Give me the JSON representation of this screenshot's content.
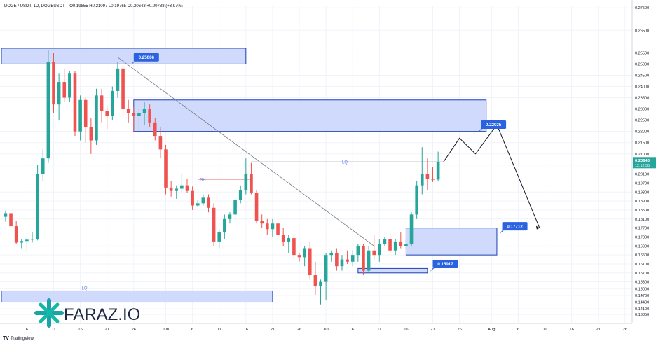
{
  "header": {
    "symbol": "DOGE / USDT, 1D, DOGEUSDT",
    "ohlc": "O0.19855  H0.21097  L0.19765  C0.20643  +0.00788 (+3.97%)"
  },
  "chart_data": {
    "type": "candlestick",
    "instrument": "DOGE / USDT",
    "timeframe": "1D",
    "ylim": [
      0.1345,
      0.276
    ],
    "y_ticks": [
      "0.27500",
      "0.26500",
      "0.25500",
      "0.25000",
      "0.24500",
      "0.24000",
      "0.23500",
      "0.23000",
      "0.22500",
      "0.22000",
      "0.21500",
      "0.21000",
      "0.20500",
      "0.20100",
      "0.19700",
      "0.19300",
      "0.18900",
      "0.18500",
      "0.18100",
      "0.17700",
      "0.17300",
      "0.16900",
      "0.16500",
      "0.16100",
      "0.15700",
      "0.15300",
      "0.15000",
      "0.14700",
      "0.14400",
      "0.14100",
      "0.13850"
    ],
    "x_ticks": [
      {
        "label": "6",
        "day": -25
      },
      {
        "label": "11",
        "day": -20
      },
      {
        "label": "16",
        "day": -15
      },
      {
        "label": "21",
        "day": -10
      },
      {
        "label": "26",
        "day": -5
      },
      {
        "label": "Jun",
        "day": 1
      },
      {
        "label": "6",
        "day": 6
      },
      {
        "label": "11",
        "day": 11
      },
      {
        "label": "16",
        "day": 16
      },
      {
        "label": "21",
        "day": 21
      },
      {
        "label": "26",
        "day": 26
      },
      {
        "label": "Jul",
        "day": 31
      },
      {
        "label": "6",
        "day": 36
      },
      {
        "label": "11",
        "day": 41
      },
      {
        "label": "16",
        "day": 46
      },
      {
        "label": "21",
        "day": 51
      },
      {
        "label": "26",
        "day": 56
      },
      {
        "label": "Aug",
        "day": 62
      },
      {
        "label": "6",
        "day": 67
      },
      {
        "label": "11",
        "day": 72
      },
      {
        "label": "16",
        "day": 77
      },
      {
        "label": "21",
        "day": 82
      },
      {
        "label": "26",
        "day": 87
      }
    ],
    "candles": [
      [
        -29,
        0.182,
        0.1845,
        0.1798,
        0.1836
      ],
      [
        -28,
        0.1836,
        0.184,
        0.177,
        0.1778
      ],
      [
        -27,
        0.1778,
        0.18,
        0.17,
        0.1705
      ],
      [
        -26,
        0.1705,
        0.172,
        0.168,
        0.1712
      ],
      [
        -25,
        0.1712,
        0.173,
        0.1665,
        0.1718
      ],
      [
        -24,
        0.1718,
        0.175,
        0.1705,
        0.1722
      ],
      [
        -23,
        0.1722,
        0.205,
        0.1715,
        0.201
      ],
      [
        -22,
        0.201,
        0.212,
        0.198,
        0.208
      ],
      [
        -21,
        0.208,
        0.256,
        0.206,
        0.251
      ],
      [
        -20,
        0.251,
        0.255,
        0.228,
        0.232
      ],
      [
        -19,
        0.232,
        0.246,
        0.225,
        0.242
      ],
      [
        -18,
        0.242,
        0.248,
        0.233,
        0.235
      ],
      [
        -17,
        0.235,
        0.247,
        0.233,
        0.246
      ],
      [
        -16,
        0.246,
        0.247,
        0.218,
        0.22
      ],
      [
        -15,
        0.22,
        0.236,
        0.216,
        0.234
      ],
      [
        -14,
        0.234,
        0.235,
        0.215,
        0.222
      ],
      [
        -13,
        0.222,
        0.226,
        0.21,
        0.216
      ],
      [
        -12,
        0.216,
        0.239,
        0.214,
        0.236
      ],
      [
        -11,
        0.236,
        0.239,
        0.224,
        0.229
      ],
      [
        -10,
        0.229,
        0.231,
        0.221,
        0.227
      ],
      [
        -9,
        0.227,
        0.24,
        0.225,
        0.238
      ],
      [
        -8,
        0.238,
        0.251,
        0.235,
        0.248
      ],
      [
        -7,
        0.248,
        0.252,
        0.227,
        0.23
      ],
      [
        -6,
        0.23,
        0.234,
        0.224,
        0.228
      ],
      [
        -5,
        0.228,
        0.231,
        0.22,
        0.227
      ],
      [
        -4,
        0.227,
        0.23,
        0.22,
        0.228
      ],
      [
        -3,
        0.228,
        0.233,
        0.223,
        0.23
      ],
      [
        -2,
        0.23,
        0.232,
        0.222,
        0.224
      ],
      [
        -1,
        0.224,
        0.226,
        0.216,
        0.218
      ],
      [
        0,
        0.218,
        0.222,
        0.208,
        0.212
      ],
      [
        1,
        0.212,
        0.214,
        0.192,
        0.195
      ],
      [
        2,
        0.195,
        0.198,
        0.191,
        0.1935
      ],
      [
        3,
        0.1935,
        0.196,
        0.19,
        0.1945
      ],
      [
        4,
        0.1945,
        0.201,
        0.193,
        0.196
      ],
      [
        5,
        0.196,
        0.199,
        0.1925,
        0.1935
      ],
      [
        6,
        0.1935,
        0.1955,
        0.185,
        0.187
      ],
      [
        7,
        0.187,
        0.1895,
        0.1865,
        0.188
      ],
      [
        8,
        0.188,
        0.192,
        0.187,
        0.1905
      ],
      [
        9,
        0.1905,
        0.192,
        0.184,
        0.186
      ],
      [
        10,
        0.186,
        0.188,
        0.169,
        0.171
      ],
      [
        11,
        0.171,
        0.176,
        0.168,
        0.175
      ],
      [
        12,
        0.175,
        0.183,
        0.172,
        0.181
      ],
      [
        13,
        0.181,
        0.184,
        0.179,
        0.183
      ],
      [
        14,
        0.183,
        0.191,
        0.1805,
        0.1895
      ],
      [
        15,
        0.1895,
        0.196,
        0.188,
        0.194
      ],
      [
        16,
        0.194,
        0.208,
        0.192,
        0.201
      ],
      [
        17,
        0.201,
        0.206,
        0.192,
        0.1925
      ],
      [
        18,
        0.1925,
        0.194,
        0.179,
        0.18
      ],
      [
        19,
        0.18,
        0.183,
        0.177,
        0.179
      ],
      [
        20,
        0.179,
        0.181,
        0.174,
        0.1765
      ],
      [
        21,
        0.1765,
        0.181,
        0.173,
        0.179
      ],
      [
        22,
        0.179,
        0.18,
        0.172,
        0.174
      ],
      [
        23,
        0.174,
        0.177,
        0.169,
        0.171
      ],
      [
        24,
        0.171,
        0.174,
        0.166,
        0.1725
      ],
      [
        25,
        0.1725,
        0.174,
        0.163,
        0.165
      ],
      [
        26,
        0.165,
        0.166,
        0.162,
        0.164
      ],
      [
        27,
        0.164,
        0.169,
        0.16,
        0.168
      ],
      [
        28,
        0.168,
        0.171,
        0.154,
        0.156
      ],
      [
        29,
        0.156,
        0.162,
        0.147,
        0.151
      ],
      [
        30,
        0.151,
        0.154,
        0.143,
        0.153
      ],
      [
        31,
        0.153,
        0.166,
        0.145,
        0.165
      ],
      [
        32,
        0.165,
        0.167,
        0.162,
        0.166
      ],
      [
        33,
        0.166,
        0.168,
        0.158,
        0.16
      ],
      [
        34,
        0.16,
        0.165,
        0.158,
        0.163
      ],
      [
        35,
        0.163,
        0.167,
        0.161,
        0.162
      ],
      [
        36,
        0.162,
        0.167,
        0.16,
        0.165
      ],
      [
        37,
        0.165,
        0.17,
        0.162,
        0.169
      ],
      [
        38,
        0.169,
        0.17,
        0.156,
        0.158
      ],
      [
        39,
        0.158,
        0.169,
        0.157,
        0.167
      ],
      [
        40,
        0.167,
        0.174,
        0.163,
        0.165
      ],
      [
        41,
        0.165,
        0.172,
        0.162,
        0.17
      ],
      [
        42,
        0.17,
        0.173,
        0.169,
        0.172
      ],
      [
        43,
        0.172,
        0.175,
        0.166,
        0.167
      ],
      [
        44,
        0.167,
        0.172,
        0.165,
        0.171
      ],
      [
        45,
        0.171,
        0.175,
        0.168,
        0.169
      ],
      [
        46,
        0.169,
        0.172,
        0.168,
        0.17
      ],
      [
        47,
        0.17,
        0.184,
        0.169,
        0.183
      ],
      [
        48,
        0.183,
        0.198,
        0.181,
        0.196
      ],
      [
        49,
        0.196,
        0.213,
        0.192,
        0.201
      ],
      [
        50,
        0.201,
        0.208,
        0.194,
        0.199
      ],
      [
        51,
        0.199,
        0.204,
        0.1975,
        0.1985
      ],
      [
        52,
        0.1986,
        0.211,
        0.1977,
        0.2064
      ]
    ],
    "zones": [
      {
        "name": "top-resistance",
        "x0": -31,
        "x1": 16,
        "y0": 0.25,
        "y1": 0.257
      },
      {
        "name": "upper-resistance",
        "x0": -5,
        "x1": 61,
        "y0": 0.22,
        "y1": 0.234
      },
      {
        "name": "demand-zone",
        "x0": 46,
        "x1": 63,
        "y0": 0.165,
        "y1": 0.177
      },
      {
        "name": "small-support",
        "x0": 37,
        "x1": 50,
        "y0": 0.157,
        "y1": 0.159
      },
      {
        "name": "lq-bottom",
        "x0": -31,
        "x1": 21,
        "y0": 0.144,
        "y1": 0.149
      }
    ],
    "price_labels": [
      {
        "text": "0.25006",
        "x": -5,
        "y": 0.253
      },
      {
        "text": "0.22035",
        "x": 60,
        "y": 0.223
      },
      {
        "text": "0.17712",
        "x": 64,
        "y": 0.1778
      },
      {
        "text": "0.15917",
        "x": 51,
        "y": 0.161
      }
    ],
    "trendline": {
      "x0": -8,
      "y0": 0.253,
      "x1": 40,
      "y1": 0.169
    },
    "sh_line": {
      "x0": 7,
      "x1": 17,
      "y": 0.1985
    },
    "lq_line_top": {
      "x0": 17,
      "x1": 53,
      "y": 0.2065
    },
    "lq_line_bottom": {
      "x0": -31,
      "x1": 21,
      "y": 0.149
    },
    "projection": [
      [
        53,
        0.2064
      ],
      [
        56,
        0.217
      ],
      [
        59,
        0.21
      ],
      [
        63,
        0.223
      ],
      [
        71,
        0.177
      ]
    ],
    "current_price": "0.20643",
    "countdown": "12:12:35",
    "annotations": {
      "sh": "SH",
      "lq_top": "LQ",
      "lq_bottom": "LQ"
    },
    "colors": {
      "up": "#26a69a",
      "down": "#ef5350",
      "zone_fill": "#c8d4fb",
      "zone_border": "#1e40af",
      "label_bg": "#2b62df",
      "price_tag": "#26a69a"
    }
  },
  "watermark": {
    "brand": "FARAZ.IO"
  },
  "footer": {
    "logo": "TradingView"
  }
}
